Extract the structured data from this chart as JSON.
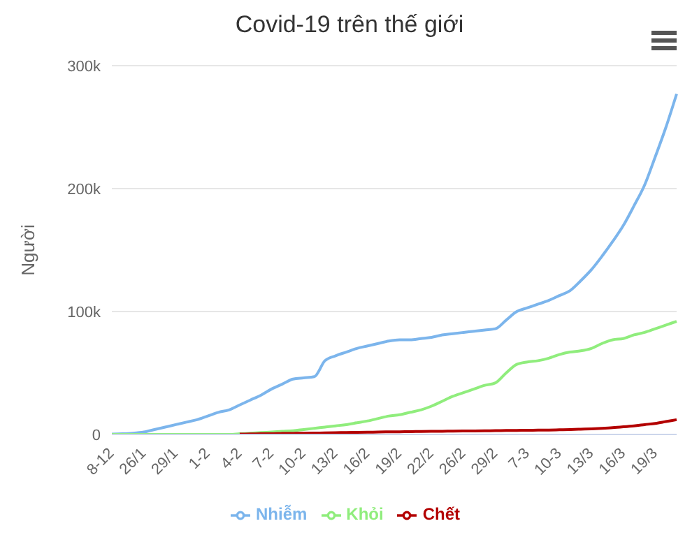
{
  "chart_data": {
    "type": "line",
    "title": "Covid-19 trên thế giới",
    "ylabel": "Người",
    "categories": [
      "8-12",
      null,
      null,
      "26/1",
      null,
      null,
      "29/1",
      null,
      null,
      "1-2",
      null,
      null,
      "4-2",
      null,
      null,
      "7-2",
      null,
      null,
      "10-2",
      null,
      null,
      "13/2",
      null,
      null,
      "16/2",
      null,
      null,
      "19/2",
      null,
      null,
      "22/2",
      null,
      null,
      "26/2",
      null,
      null,
      "29/2",
      null,
      null,
      "7-3",
      null,
      null,
      "10-3",
      null,
      null,
      "13/3",
      null,
      null,
      "16/3",
      null,
      null,
      "19/3",
      null,
      null
    ],
    "series": [
      {
        "name": "Nhiễm",
        "color": "#7cb5ec",
        "values": [
          300,
          500,
          1000,
          2000,
          4000,
          6000,
          8000,
          10000,
          12000,
          15000,
          18000,
          20000,
          24000,
          28000,
          32000,
          37000,
          41000,
          45000,
          46000,
          47000,
          60000,
          64000,
          67000,
          70000,
          72000,
          74000,
          76000,
          77000,
          77000,
          78000,
          79000,
          81000,
          82000,
          83000,
          84000,
          85000,
          86000,
          93000,
          100000,
          103000,
          106000,
          109000,
          113000,
          117000,
          125000,
          134000,
          145000,
          157000,
          170000,
          186000,
          203000,
          226000,
          250000,
          277000
        ]
      },
      {
        "name": "Khỏi",
        "color": "#90ed7d",
        "values": [
          0,
          0,
          0,
          0,
          0,
          0,
          0,
          0,
          0,
          0,
          0,
          0,
          500,
          1000,
          1500,
          2000,
          2500,
          3000,
          4000,
          5000,
          6000,
          7000,
          8000,
          9500,
          11000,
          13000,
          15000,
          16000,
          18000,
          20000,
          23000,
          27000,
          31000,
          34000,
          37000,
          40000,
          42000,
          50000,
          57000,
          59000,
          60000,
          62000,
          65000,
          67000,
          68000,
          70000,
          74000,
          77000,
          78000,
          81000,
          83000,
          86000,
          89000,
          92000
        ]
      },
      {
        "name": "Chết",
        "color": "#b30000",
        "values": [
          null,
          null,
          null,
          null,
          null,
          null,
          null,
          null,
          null,
          null,
          null,
          null,
          300,
          400,
          500,
          600,
          800,
          900,
          1000,
          1100,
          1300,
          1400,
          1600,
          1700,
          1800,
          2000,
          2100,
          2200,
          2300,
          2400,
          2500,
          2600,
          2700,
          2800,
          2900,
          3000,
          3100,
          3200,
          3300,
          3400,
          3500,
          3600,
          3800,
          4000,
          4300,
          4600,
          5000,
          5500,
          6200,
          7000,
          8000,
          9000,
          10500,
          12000
        ]
      }
    ],
    "ylim": [
      0,
      300000
    ],
    "yticks": [
      0,
      {
        "value": 100000,
        "label": "100k"
      },
      {
        "value": 200000,
        "label": "200k"
      },
      {
        "value": 300000,
        "label": "300k"
      }
    ],
    "grid": "y",
    "legend": "bottom",
    "marker": "none",
    "line_style": "solid"
  }
}
